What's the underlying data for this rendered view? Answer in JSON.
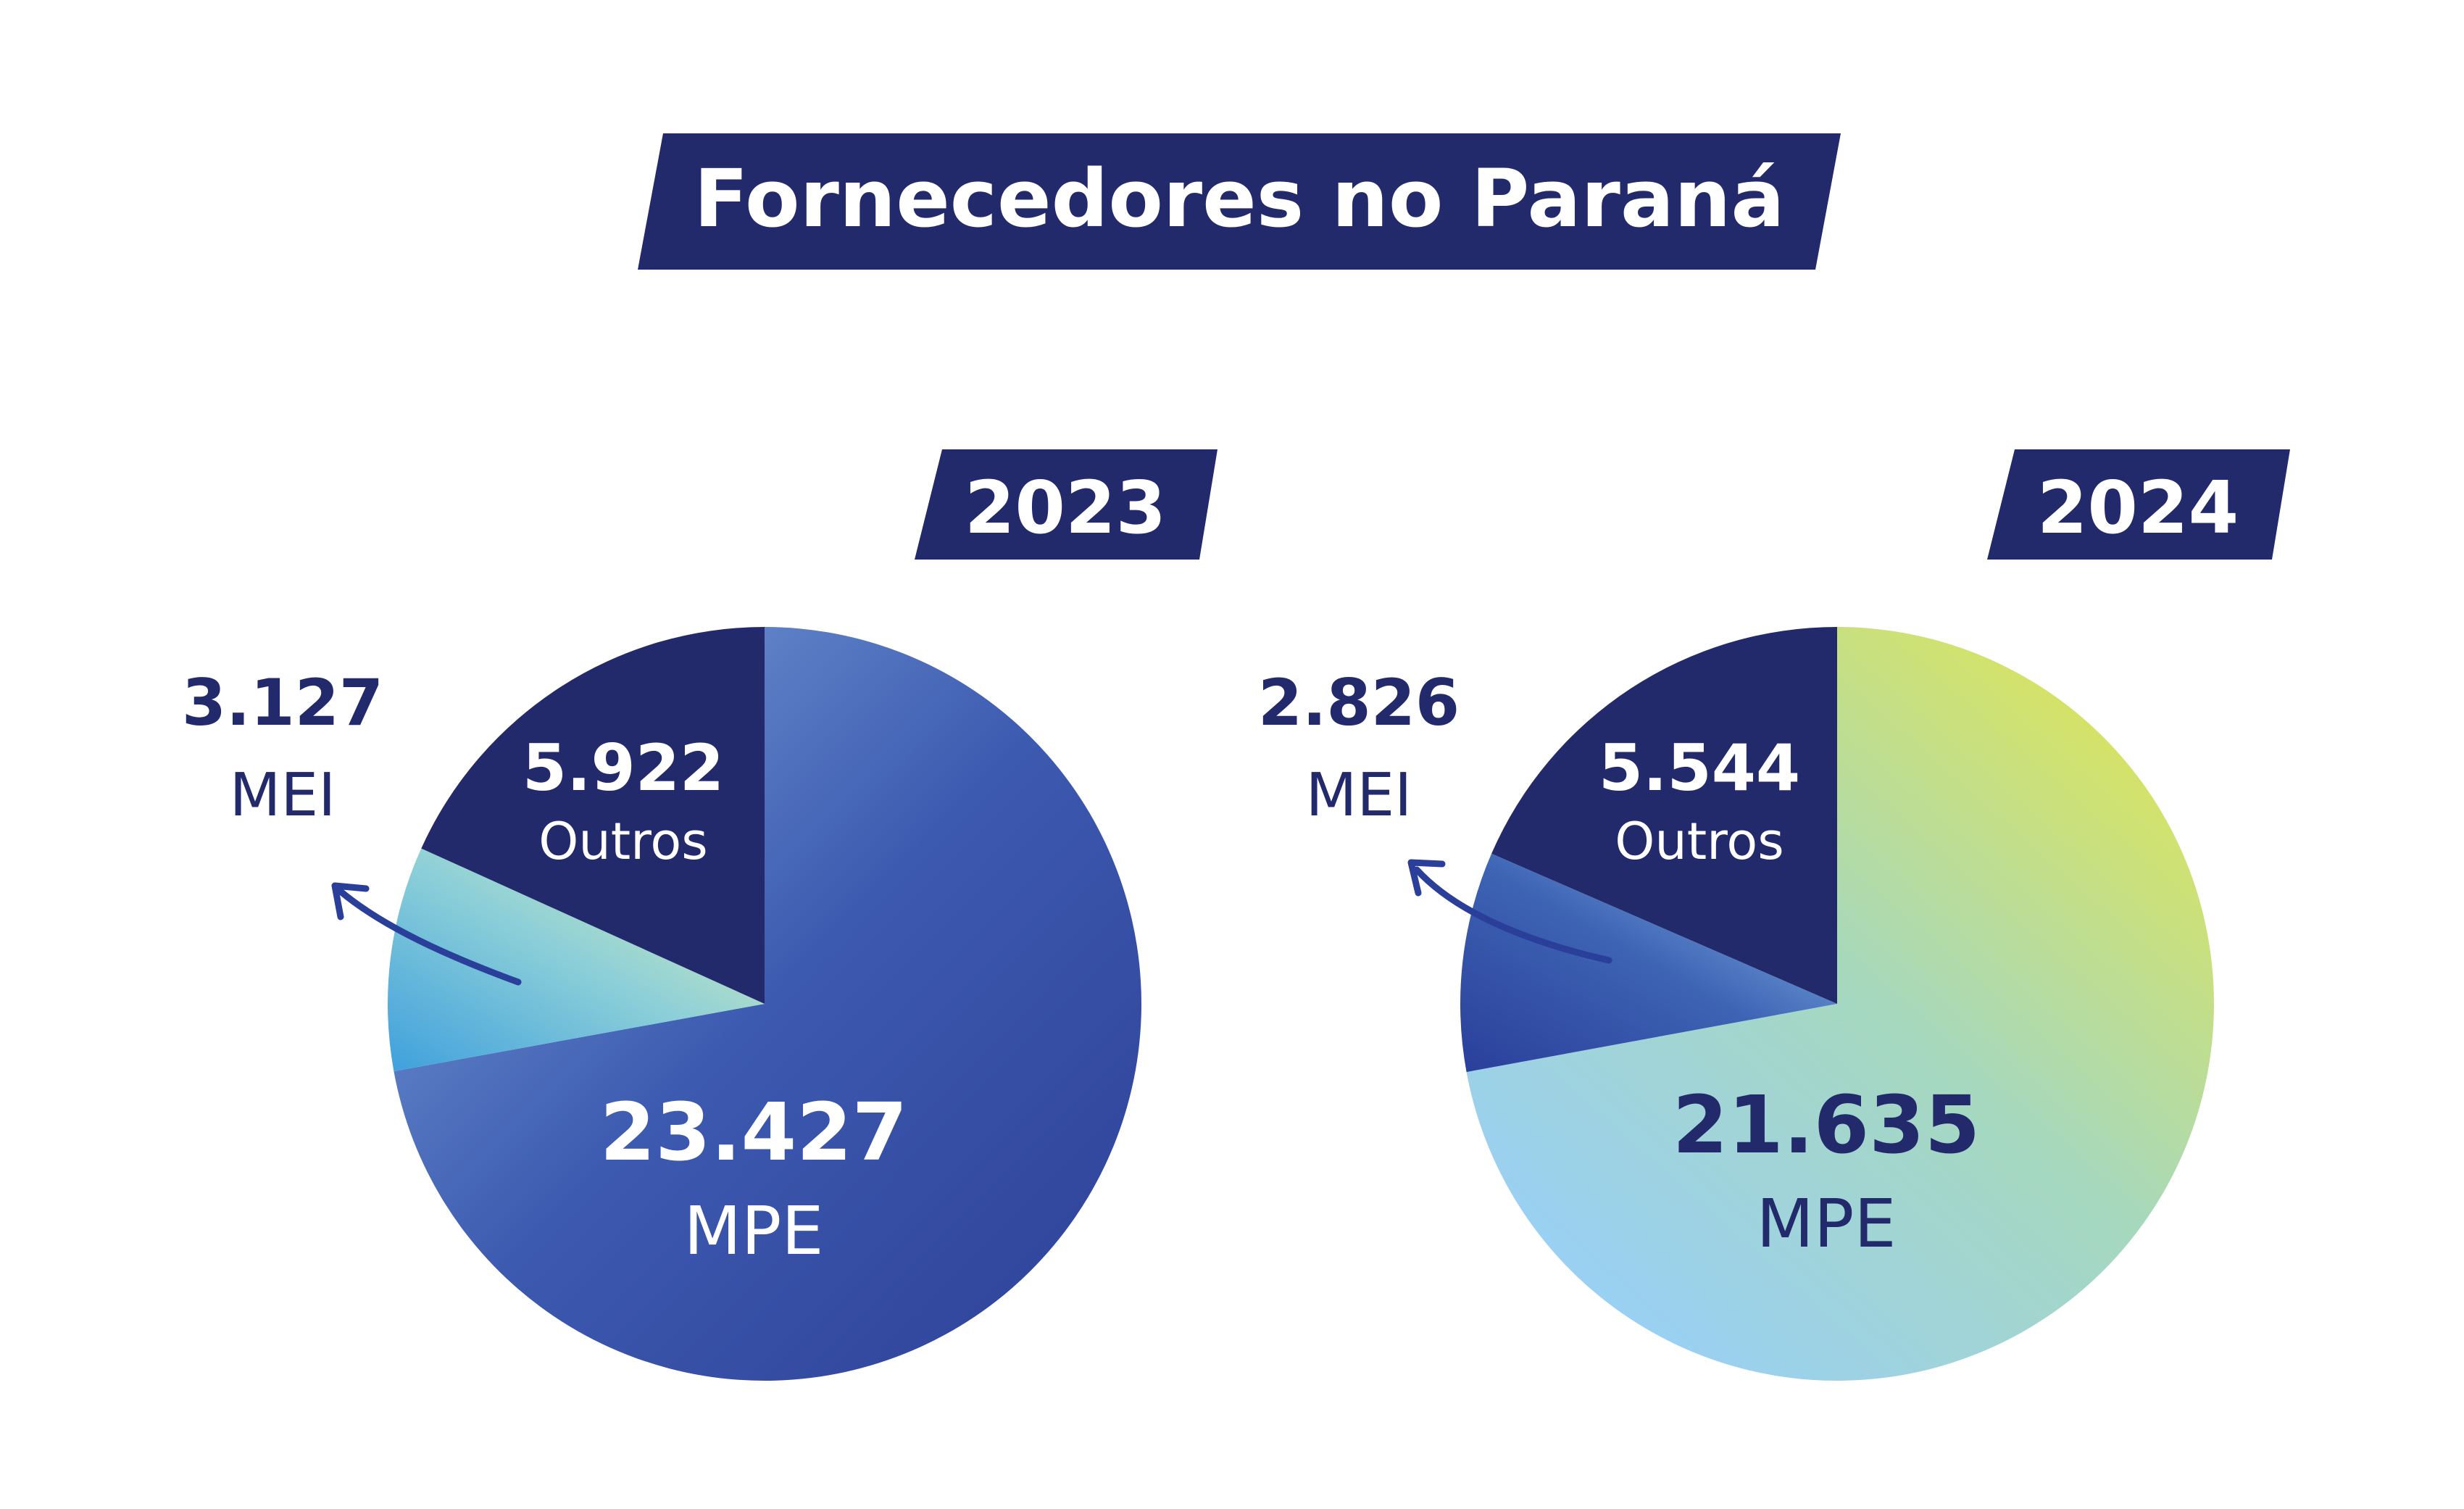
{
  "title": "Fornecedores no Paraná",
  "colors": {
    "navy": "#232a6c",
    "white": "#ffffff"
  },
  "chart_data": [
    {
      "type": "pie",
      "year_label": "2023",
      "slices": [
        {
          "value": 23427,
          "value_label": "23.427",
          "category": "MPE",
          "colors": [
            "#7fa6dc",
            "#3c5ab0",
            "#2e3f96"
          ]
        },
        {
          "value": 3127,
          "value_label": "3.127",
          "category": "MEI",
          "colors": [
            "#3fa0dd",
            "#8ccfd8",
            "#e4f2b4"
          ]
        },
        {
          "value": 5922,
          "value_label": "5.922",
          "category": "Outros",
          "colors": [
            "#232a6c",
            "#232a6c",
            "#232a6c"
          ]
        }
      ]
    },
    {
      "type": "pie",
      "year_label": "2024",
      "slices": [
        {
          "value": 21635,
          "value_label": "21.635",
          "category": "MPE",
          "colors": [
            "#9ad0f2",
            "#a6d8be",
            "#dbe45c"
          ]
        },
        {
          "value": 2826,
          "value_label": "2.826",
          "category": "MEI",
          "colors": [
            "#2a3f9a",
            "#3d63b4",
            "#8ec2ec"
          ]
        },
        {
          "value": 5544,
          "value_label": "5.544",
          "category": "Outros",
          "colors": [
            "#232a6c",
            "#232a6c",
            "#232a6c"
          ]
        }
      ]
    }
  ]
}
